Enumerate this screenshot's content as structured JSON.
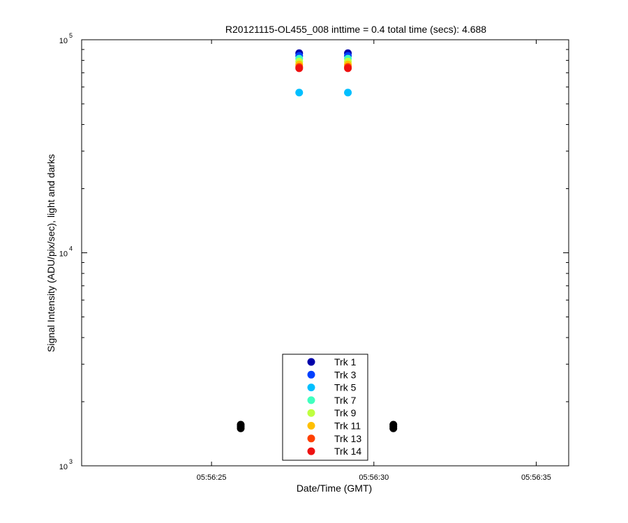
{
  "chart_data": {
    "type": "scatter",
    "title": "R20121115-OL455_008 inttime = 0.4 total time (secs): 4.688",
    "xlabel": "Date/Time (GMT)",
    "ylabel": "Signal Intensity (ADU/pix/sec), light and darks",
    "yscale": "log",
    "ylim": [
      1000,
      100000
    ],
    "xlim": [
      "05:56:21",
      "05:56:36"
    ],
    "xticks": [
      "05:56:25",
      "05:56:30",
      "05:56:35"
    ],
    "yticks": [
      {
        "base": "10",
        "exp": "3",
        "value": 1000
      },
      {
        "base": "10",
        "exp": "4",
        "value": 10000
      },
      {
        "base": "10",
        "exp": "5",
        "value": 100000
      }
    ],
    "grid": false,
    "legend_position": "lower-center",
    "series": [
      {
        "name": "Trk 1",
        "color": "#0000aa",
        "points": [
          {
            "x": "05:56:27.7",
            "y": 86500
          },
          {
            "x": "05:56:29.2",
            "y": 86500
          }
        ]
      },
      {
        "name": "Trk 3",
        "color": "#0040ff",
        "points": [
          {
            "x": "05:56:27.7",
            "y": 84000
          },
          {
            "x": "05:56:29.2",
            "y": 84000
          }
        ]
      },
      {
        "name": "Trk 5",
        "color": "#00bfff",
        "points": [
          {
            "x": "05:56:27.7",
            "y": 56500
          },
          {
            "x": "05:56:29.2",
            "y": 56500
          }
        ]
      },
      {
        "name": "Trk 7",
        "color": "#40ffbf",
        "points": [
          {
            "x": "05:56:27.7",
            "y": 81500
          },
          {
            "x": "05:56:29.2",
            "y": 81500
          }
        ]
      },
      {
        "name": "Trk 9",
        "color": "#bfff40",
        "points": [
          {
            "x": "05:56:27.7",
            "y": 79000
          },
          {
            "x": "05:56:29.2",
            "y": 79000
          }
        ]
      },
      {
        "name": "Trk 11",
        "color": "#ffbf00",
        "points": [
          {
            "x": "05:56:27.7",
            "y": 76500
          },
          {
            "x": "05:56:29.2",
            "y": 76500
          }
        ]
      },
      {
        "name": "Trk 13",
        "color": "#ff4000",
        "points": [
          {
            "x": "05:56:27.7",
            "y": 74500
          },
          {
            "x": "05:56:29.2",
            "y": 74500
          }
        ]
      },
      {
        "name": "Trk 14",
        "color": "#ee1111",
        "points": [
          {
            "x": "05:56:27.7",
            "y": 73500
          },
          {
            "x": "05:56:29.2",
            "y": 73500
          }
        ]
      }
    ],
    "dark_points": {
      "color": "#000000",
      "points": [
        {
          "x": "05:56:25.9",
          "y": 1500
        },
        {
          "x": "05:56:25.9",
          "y": 1530
        },
        {
          "x": "05:56:25.9",
          "y": 1560
        },
        {
          "x": "05:56:30.6",
          "y": 1500
        },
        {
          "x": "05:56:30.6",
          "y": 1530
        },
        {
          "x": "05:56:30.6",
          "y": 1560
        }
      ]
    }
  }
}
